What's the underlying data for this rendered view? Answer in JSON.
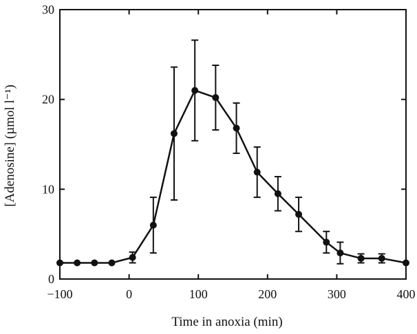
{
  "chart_data": {
    "type": "line",
    "xlabel": "Time in anoxia (min)",
    "ylabel": "[Adenosine] (µmol l⁻¹)",
    "xlim": [
      -100,
      400
    ],
    "ylim": [
      0,
      30
    ],
    "x_ticks": [
      -100,
      0,
      100,
      200,
      300,
      400
    ],
    "x_tick_labels": [
      "−100",
      "0",
      "100",
      "200",
      "300",
      "400"
    ],
    "y_ticks": [
      0,
      10,
      20,
      30
    ],
    "y_tick_labels": [
      "0",
      "10",
      "20",
      "30"
    ],
    "grid": false,
    "series": [
      {
        "x": [
          -100,
          -75,
          -50,
          -25,
          5,
          35,
          65,
          95,
          125,
          155,
          185,
          215,
          245,
          285,
          305,
          335,
          365,
          400
        ],
        "y": [
          1.8,
          1.8,
          1.8,
          1.8,
          2.4,
          6.0,
          16.2,
          21.0,
          20.2,
          16.8,
          11.9,
          9.5,
          7.2,
          4.1,
          2.9,
          2.3,
          2.3,
          1.8
        ],
        "error": [
          0,
          0,
          0,
          0,
          0.6,
          3.1,
          7.4,
          5.6,
          3.6,
          2.8,
          2.8,
          1.9,
          1.9,
          1.2,
          1.2,
          0.5,
          0.5,
          0
        ]
      }
    ]
  }
}
